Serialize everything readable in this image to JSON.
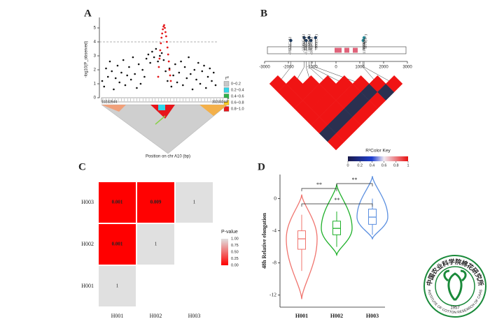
{
  "chart_data": [
    {
      "type": "manhattan",
      "label": "A",
      "y_label": "-log10(P_observed)",
      "ylim": [
        0,
        5.5
      ],
      "yticks": [
        0,
        1,
        2,
        3,
        4,
        5
      ],
      "threshold": 4,
      "series": [
        {
          "color": "#111111",
          "values": [
            1.2,
            0.8,
            2.1,
            1.5,
            2.6,
            1.9,
            0.6,
            1.4,
            2.3,
            1.1,
            1.8,
            2.7,
            0.9,
            1.6,
            2.2,
            1.3,
            2.9,
            1.7,
            0.7,
            2.4,
            1.0,
            2.0,
            1.5,
            2.8,
            3.1,
            2.5,
            3.3,
            2.9,
            3.5,
            2.6,
            3.0,
            3.2,
            2.7,
            1.9,
            1.2,
            2.1,
            0.8,
            1.6,
            2.4,
            1.1,
            1.8,
            2.6,
            0.9,
            2.2,
            1.4,
            2.9,
            1.7,
            0.6,
            2.0,
            1.3,
            2.5,
            1.0,
            1.9,
            2.3,
            0.7,
            1.5,
            2.1,
            1.2,
            1.8,
            0.9
          ]
        },
        {
          "color": "#e41a1c",
          "values": [
            1.5,
            2.2,
            2.8,
            3.4,
            3.9,
            4.3,
            4.6,
            4.9,
            5.1,
            5.2,
            5.0,
            4.7,
            4.4,
            4.0,
            3.6,
            3.1,
            2.6,
            2.0,
            1.6,
            1.2
          ]
        }
      ],
      "legend_title": "r²",
      "legend": [
        {
          "label": "0~0.2",
          "color": "#c8c8c8"
        },
        {
          "label": "0.2~0.4",
          "color": "#33d6e8"
        },
        {
          "label": "0.4~0.6",
          "color": "#2fb34a"
        },
        {
          "label": "0.6~0.8",
          "color": "#ffd21f"
        },
        {
          "label": "0.8~1.0",
          "color": "#e8151b"
        }
      ],
      "start_label": "10232544",
      "end_label": "10233244",
      "x_label": "Position on chr A10 (bp)"
    },
    {
      "type": "gene_structure",
      "label": "B",
      "xlim": [
        -3000,
        3000
      ],
      "xticks": [
        -3000,
        -2000,
        -1000,
        0,
        1000,
        2000,
        3000
      ],
      "marker_color": "#1f3f66",
      "variants": [
        {
          "label": "-1897(C/A)",
          "position": -1897
        },
        {
          "label": "-1336(G/A)",
          "position": -1336
        },
        {
          "label": "-1256(G/T)",
          "position": -1256
        },
        {
          "label": "-1132(G/A)",
          "position": -1132
        },
        {
          "label": "-1052(C/A)",
          "position": -1052
        },
        {
          "label": "-860(C/T)",
          "position": -860
        },
        {
          "label": "1139(A/G)",
          "position": 1139
        },
        {
          "label": "1179(T/-)",
          "position": 1179
        }
      ],
      "color_key": {
        "title": "R²Color Key",
        "lim": [
          0,
          1
        ],
        "ticks": [
          0,
          0.2,
          0.4,
          0.6,
          0.8,
          1
        ]
      }
    },
    {
      "type": "heatmap",
      "label": "C",
      "x_categories": [
        "H001",
        "H002",
        "H003"
      ],
      "y_categories": [
        "H001",
        "H002",
        "H003"
      ],
      "values": [
        [
          1,
          null,
          null
        ],
        [
          0.001,
          1,
          null
        ],
        [
          0.001,
          0.009,
          1
        ]
      ],
      "legend_title": "P-value",
      "legend_ticks": [
        {
          "value": 1,
          "label": "1.00"
        },
        {
          "value": 0.75,
          "label": "0.75"
        },
        {
          "value": 0.5,
          "label": "0.50"
        },
        {
          "value": 0.25,
          "label": "0.25"
        },
        {
          "value": 0,
          "label": "0.00"
        }
      ]
    },
    {
      "type": "violin",
      "label": "D",
      "y_label": "48h Relative elongation",
      "ylim": [
        -13.5,
        3
      ],
      "yticks": [
        -12,
        -8,
        -4,
        0
      ],
      "categories": [
        "H001",
        "H002",
        "H003"
      ],
      "stats": [
        {
          "color": "#f0746e",
          "min": -12.5,
          "whisker_low": -9,
          "q1": -6.3,
          "median": -5,
          "q3": -4,
          "whisker_high": -2,
          "max": 0.5
        },
        {
          "color": "#1fb02a",
          "min": -7,
          "whisker_low": -6,
          "q1": -4.5,
          "median": -3.7,
          "q3": -2.8,
          "whisker_high": -1.6,
          "max": 1.8
        },
        {
          "color": "#5b8fe0",
          "min": -5,
          "whisker_low": -4.5,
          "q1": -3.2,
          "median": -2.3,
          "q3": -1.3,
          "whisker_high": 0,
          "max": 2.8
        }
      ],
      "significance": [
        {
          "from": 0,
          "to": 1,
          "label": "**"
        },
        {
          "from": 1,
          "to": 2,
          "label": "**"
        },
        {
          "from": 0,
          "to": 2,
          "label": "**"
        }
      ]
    }
  ],
  "logo": {
    "name_cn": "中国农业科学院棉花研究所",
    "name_en": "INSTITUTE OF COTTON RESEARCH OF CAAS",
    "year": "1957"
  }
}
